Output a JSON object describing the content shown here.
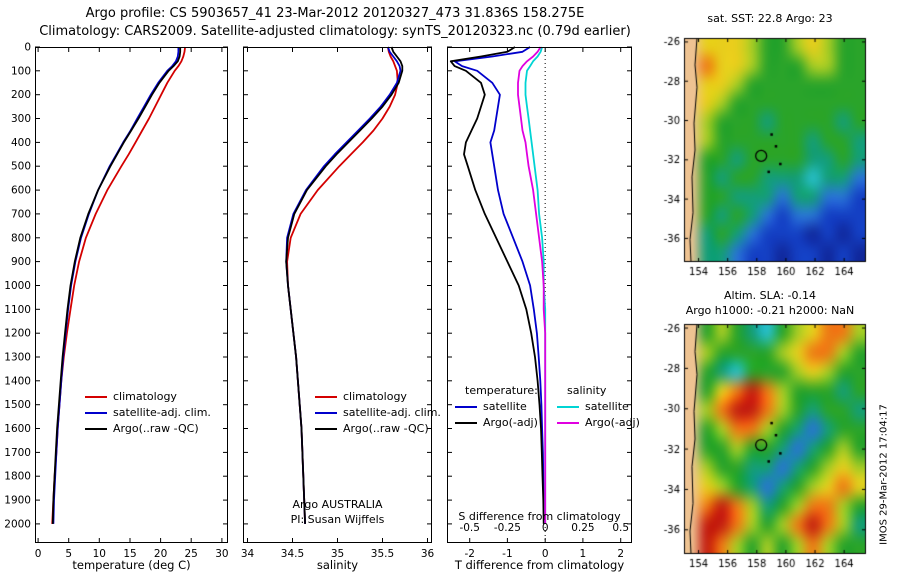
{
  "header": {
    "line1": "Argo profile: CS 5903657_41 23-Mar-2012 20120327_473 31.836S 158.275E",
    "line2": "Climatology: CARS2009. Satellite-adjusted climatology: synTS_20120323.nc (0.79d earlier)"
  },
  "annotations": {
    "program": "Argo AUSTRALIA",
    "pi": "PI: Susan Wijffels",
    "watermark": "IMOS 29-Mar-2012 17:04:17"
  },
  "chart_data": {
    "type": "line",
    "ylim": [
      0,
      2080
    ],
    "depth_ticks": [
      0,
      100,
      200,
      300,
      400,
      500,
      600,
      700,
      800,
      900,
      1000,
      1100,
      1200,
      1300,
      1400,
      1500,
      1600,
      1700,
      1800,
      1900,
      2000
    ],
    "depths": [
      0,
      20,
      40,
      60,
      80,
      100,
      150,
      200,
      250,
      300,
      350,
      400,
      450,
      500,
      600,
      700,
      800,
      900,
      1000,
      1100,
      1200,
      1300,
      1400,
      1500,
      1600,
      1700,
      1800,
      1900,
      2000
    ],
    "panels": [
      {
        "id": "temperature",
        "xlabel": "temperature (deg C)",
        "xlim": [
          -0.5,
          31
        ],
        "xticks": [
          0,
          5,
          10,
          15,
          20,
          25,
          30
        ],
        "series": [
          {
            "name": "climatology",
            "color": "#d40000",
            "values": [
              24.0,
              23.9,
              23.7,
              23.4,
              22.9,
              22.3,
              21.1,
              20.1,
              19.1,
              18.1,
              17.0,
              15.9,
              14.8,
              13.6,
              11.3,
              9.4,
              7.8,
              6.7,
              5.9,
              5.3,
              4.7,
              4.2,
              3.8,
              3.5,
              3.2,
              3.0,
              2.7,
              2.5,
              2.3
            ]
          },
          {
            "name": "satellite-adj. clim.",
            "color": "#0000cc",
            "values": [
              22.9,
              22.9,
              22.8,
              22.5,
              21.9,
              21.1,
              19.6,
              18.4,
              17.3,
              16.2,
              15.1,
              13.9,
              12.8,
              11.7,
              9.8,
              8.3,
              7.0,
              6.1,
              5.4,
              4.9,
              4.5,
              4.1,
              3.8,
              3.5,
              3.2,
              3.0,
              2.8,
              2.6,
              2.5
            ]
          },
          {
            "name": "Argo(..raw -QC)",
            "color": "#000000",
            "values": [
              23.2,
              23.2,
              23.1,
              22.8,
              22.1,
              21.3,
              19.8,
              18.6,
              17.5,
              16.4,
              15.2,
              14.0,
              12.9,
              11.8,
              9.8,
              8.2,
              6.9,
              6.0,
              5.3,
              4.8,
              4.4,
              4.0,
              3.7,
              3.4,
              3.1,
              2.9,
              2.7,
              2.5,
              2.4
            ]
          }
        ]
      },
      {
        "id": "salinity",
        "xlabel": "salinity",
        "xlim": [
          33.95,
          36.05
        ],
        "xticks": [
          34,
          34.5,
          35,
          35.5,
          36
        ],
        "series": [
          {
            "name": "climatology",
            "color": "#d40000",
            "values": [
              35.56,
              35.57,
              35.59,
              35.62,
              35.64,
              35.66,
              35.67,
              35.64,
              35.58,
              35.5,
              35.4,
              35.28,
              35.15,
              35.02,
              34.78,
              34.59,
              34.48,
              34.44,
              34.45,
              34.48,
              34.51,
              34.54,
              34.56,
              34.58,
              34.6,
              34.61,
              34.62,
              34.63,
              34.64
            ]
          },
          {
            "name": "satellite-adj. clim.",
            "color": "#0000cc",
            "values": [
              35.56,
              35.58,
              35.62,
              35.66,
              35.69,
              35.7,
              35.66,
              35.58,
              35.48,
              35.36,
              35.23,
              35.1,
              34.97,
              34.85,
              34.65,
              34.51,
              34.44,
              34.43,
              34.45,
              34.48,
              34.51,
              34.54,
              34.56,
              34.58,
              34.6,
              34.61,
              34.62,
              34.63,
              34.64
            ]
          },
          {
            "name": "Argo(..raw -QC)",
            "color": "#000000",
            "values": [
              35.6,
              35.62,
              35.66,
              35.7,
              35.72,
              35.72,
              35.68,
              35.6,
              35.5,
              35.38,
              35.25,
              35.12,
              34.99,
              34.87,
              34.66,
              34.52,
              34.45,
              34.43,
              34.45,
              34.48,
              34.51,
              34.54,
              34.56,
              34.58,
              34.6,
              34.61,
              34.62,
              34.63,
              34.64
            ]
          }
        ]
      },
      {
        "id": "difference",
        "xlabel": "T difference from climatology",
        "xlim": [
          -2.6,
          2.3
        ],
        "xticks": [
          -2,
          -1,
          0,
          1,
          2
        ],
        "zero_line": true,
        "s_axis": {
          "label": "S difference from climatology",
          "ticks": [
            -0.5,
            -0.25,
            0,
            0.25,
            0.5
          ],
          "scale": 4
        },
        "legend_headers": [
          "temperature:",
          "salinity"
        ],
        "series": [
          {
            "name": "satellite",
            "group": "temperature",
            "color": "#0000cc",
            "values": [
              -0.4,
              -0.6,
              -1.4,
              -2.4,
              -2.2,
              -1.8,
              -1.4,
              -1.2,
              -1.25,
              -1.3,
              -1.35,
              -1.45,
              -1.4,
              -1.35,
              -1.25,
              -1.1,
              -0.85,
              -0.6,
              -0.4,
              -0.3,
              -0.22,
              -0.17,
              -0.13,
              -0.1,
              -0.08,
              -0.06,
              -0.05,
              -0.04,
              -0.03
            ]
          },
          {
            "name": "Argo(-adj)",
            "group": "temperature",
            "color": "#000000",
            "values": [
              -0.8,
              -1.0,
              -1.7,
              -2.5,
              -2.4,
              -2.1,
              -1.7,
              -1.6,
              -1.7,
              -1.8,
              -1.95,
              -2.1,
              -2.15,
              -2.05,
              -1.85,
              -1.6,
              -1.3,
              -1.0,
              -0.7,
              -0.5,
              -0.37,
              -0.27,
              -0.2,
              -0.15,
              -0.11,
              -0.09,
              -0.07,
              -0.05,
              -0.04
            ]
          },
          {
            "name": "satellite",
            "group": "salinity",
            "color": "#00d4d4",
            "plot_scale": 4,
            "values": [
              -0.02,
              -0.03,
              -0.05,
              -0.08,
              -0.1,
              -0.12,
              -0.13,
              -0.13,
              -0.12,
              -0.11,
              -0.1,
              -0.09,
              -0.08,
              -0.07,
              -0.05,
              -0.04,
              -0.02,
              -0.01,
              -0.01,
              0,
              0,
              0,
              0,
              0,
              0,
              0,
              0,
              0,
              0
            ]
          },
          {
            "name": "Argo(-adj)",
            "group": "salinity",
            "color": "#e000e0",
            "plot_scale": 4,
            "values": [
              -0.03,
              -0.05,
              -0.08,
              -0.12,
              -0.15,
              -0.17,
              -0.18,
              -0.18,
              -0.17,
              -0.16,
              -0.15,
              -0.13,
              -0.12,
              -0.11,
              -0.08,
              -0.06,
              -0.04,
              -0.02,
              -0.01,
              -0.01,
              0,
              0,
              0,
              0,
              0,
              0,
              0,
              0,
              0
            ]
          }
        ]
      }
    ],
    "maps": {
      "palette": {
        "L": "#eec392",
        "R": "#c41e10",
        "O": "#ee7a14",
        "Y": "#e8ce1c",
        "g": "#a6cc24",
        "G": "#2aa42a",
        "t": "#149e78",
        "C": "#28c0cc",
        "b": "#2874d4",
        "B": "#1440c4",
        "D": "#10289c",
        "N": "#081878"
      },
      "lon_range": [
        153,
        165.5
      ],
      "lat_range": [
        -25.8,
        -37.2
      ],
      "lon_ticks": [
        154,
        156,
        158,
        160,
        162,
        164
      ],
      "lat_ticks": [
        -26,
        -28,
        -30,
        -32,
        -34,
        -36
      ],
      "marker": {
        "lon": 158.3,
        "lat": -31.8
      },
      "dots": [
        [
          159.3,
          -31.3
        ],
        [
          159.6,
          -32.2
        ],
        [
          159.0,
          -30.7
        ],
        [
          158.8,
          -32.6
        ]
      ],
      "sst": {
        "type": "heatmap",
        "title": "sat. SST: 22.8 Argo: 23",
        "grid": [
          "LYYYgGGgYgGG",
          "LOYYgGGGggGG",
          "LYYgGGGGGGGG",
          "LYgGGGGGGGGG",
          "LgGGGtGGGGtG",
          "LgGGGGGGtGGt",
          "LGGtGGGGttGt",
          "LGtGGtttCttb",
          "LGGtttbttbbB",
          "LGtGtbBbbBBB",
          "LtGtbBBBDBDB",
          "LttbBBDBBDBD"
        ]
      },
      "sla": {
        "type": "heatmap",
        "title_line1": "Altim. SLA: -0.14",
        "title_line2": "Argo h1000: -0.21 h2000: NaN",
        "grid": [
          "LGgGtCGgYOOg",
          "LgGGGGgYOOgG",
          "LGtCGGGgYgGG",
          "LGYOROgGGGtG",
          "LgORROgGtGGt",
          "LGgOOgGtbtGG",
          "LGGgGGtbtGgG",
          "LgGGttbtGgYg",
          "LYgGtbtGgYOY",
          "LOROgtGgOOgG",
          "LRROgGgOROgt",
          "LROgGgGgOgGG"
        ]
      }
    }
  }
}
